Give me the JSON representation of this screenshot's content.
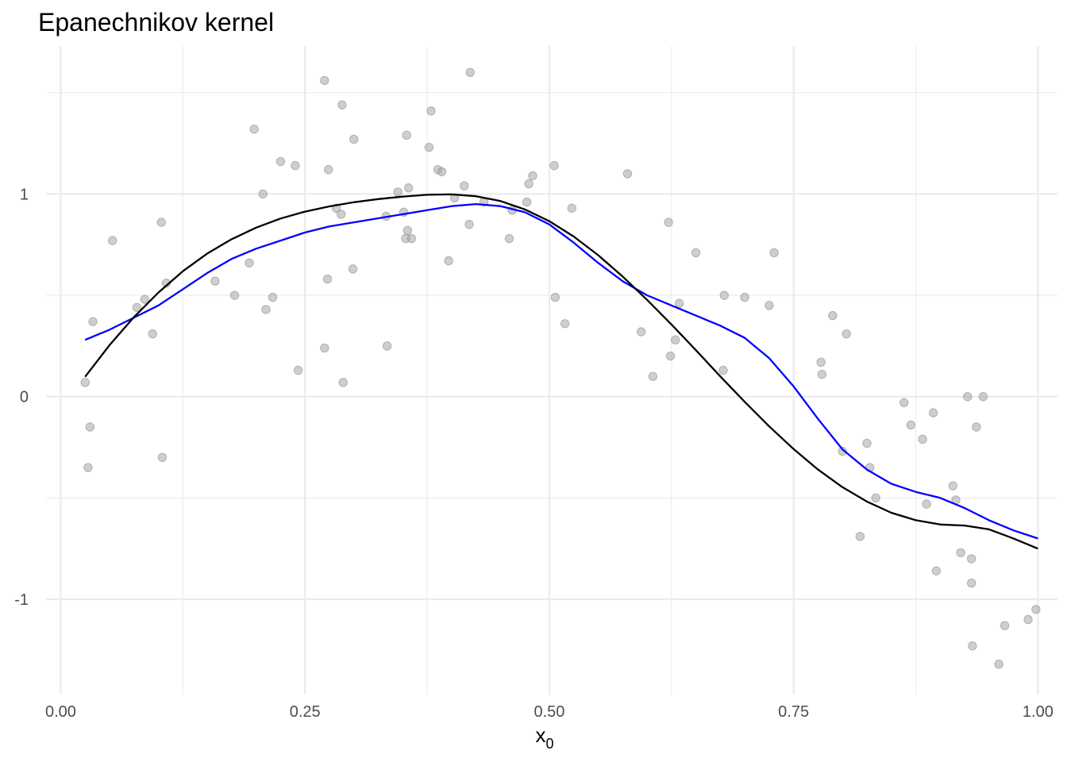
{
  "chart_data": {
    "type": "scatter",
    "title": "Epanechnikov kernel",
    "xlabel": "x",
    "xlabel_subscript": "0",
    "ylabel": "",
    "xlim": [
      -0.015,
      1.02
    ],
    "ylim": [
      -1.47,
      1.73
    ],
    "x_ticks": [
      0.0,
      0.25,
      0.5,
      0.75,
      1.0
    ],
    "x_tick_labels": [
      "0.00",
      "0.25",
      "0.50",
      "0.75",
      "1.00"
    ],
    "x_minor_ticks": [
      0.125,
      0.375,
      0.625,
      0.875
    ],
    "y_ticks": [
      -1,
      0,
      1
    ],
    "y_tick_labels": [
      "-1",
      "0",
      "1"
    ],
    "y_minor_ticks": [
      -0.5,
      0.5,
      1.5
    ],
    "grid": true,
    "colors": {
      "points": "#a6a6a6",
      "true_curve": "#000000",
      "kernel_fit": "#0000ff",
      "grid": "#ebebeb",
      "tick_text": "#4d4d4d"
    },
    "points": [
      [
        0.025,
        0.07
      ],
      [
        0.028,
        -0.35
      ],
      [
        0.03,
        -0.15
      ],
      [
        0.033,
        0.37
      ],
      [
        0.053,
        0.77
      ],
      [
        0.078,
        0.44
      ],
      [
        0.086,
        0.48
      ],
      [
        0.094,
        0.31
      ],
      [
        0.103,
        0.86
      ],
      [
        0.104,
        -0.3
      ],
      [
        0.108,
        0.56
      ],
      [
        0.158,
        0.57
      ],
      [
        0.178,
        0.5
      ],
      [
        0.193,
        0.66
      ],
      [
        0.198,
        1.32
      ],
      [
        0.207,
        1.0
      ],
      [
        0.21,
        0.43
      ],
      [
        0.217,
        0.49
      ],
      [
        0.225,
        1.16
      ],
      [
        0.24,
        1.14
      ],
      [
        0.243,
        0.13
      ],
      [
        0.27,
        0.24
      ],
      [
        0.27,
        1.56
      ],
      [
        0.273,
        0.58
      ],
      [
        0.274,
        1.12
      ],
      [
        0.282,
        0.93
      ],
      [
        0.287,
        0.9
      ],
      [
        0.288,
        1.44
      ],
      [
        0.289,
        0.07
      ],
      [
        0.299,
        0.63
      ],
      [
        0.3,
        1.27
      ],
      [
        0.333,
        0.89
      ],
      [
        0.334,
        0.25
      ],
      [
        0.345,
        1.01
      ],
      [
        0.351,
        0.91
      ],
      [
        0.353,
        0.78
      ],
      [
        0.354,
        1.29
      ],
      [
        0.355,
        0.82
      ],
      [
        0.356,
        1.03
      ],
      [
        0.359,
        0.78
      ],
      [
        0.377,
        1.23
      ],
      [
        0.379,
        1.41
      ],
      [
        0.386,
        1.12
      ],
      [
        0.39,
        1.11
      ],
      [
        0.397,
        0.67
      ],
      [
        0.403,
        0.98
      ],
      [
        0.413,
        1.04
      ],
      [
        0.418,
        0.85
      ],
      [
        0.419,
        1.6
      ],
      [
        0.433,
        0.96
      ],
      [
        0.459,
        0.78
      ],
      [
        0.462,
        0.92
      ],
      [
        0.477,
        0.96
      ],
      [
        0.479,
        1.05
      ],
      [
        0.483,
        1.09
      ],
      [
        0.505,
        1.14
      ],
      [
        0.506,
        0.49
      ],
      [
        0.516,
        0.36
      ],
      [
        0.523,
        0.93
      ],
      [
        0.58,
        1.1
      ],
      [
        0.594,
        0.32
      ],
      [
        0.606,
        0.1
      ],
      [
        0.622,
        0.86
      ],
      [
        0.624,
        0.2
      ],
      [
        0.629,
        0.28
      ],
      [
        0.633,
        0.46
      ],
      [
        0.65,
        0.71
      ],
      [
        0.678,
        0.13
      ],
      [
        0.679,
        0.5
      ],
      [
        0.7,
        0.49
      ],
      [
        0.725,
        0.45
      ],
      [
        0.73,
        0.71
      ],
      [
        0.778,
        0.17
      ],
      [
        0.779,
        0.11
      ],
      [
        0.79,
        0.4
      ],
      [
        0.8,
        -0.27
      ],
      [
        0.804,
        0.31
      ],
      [
        0.818,
        -0.69
      ],
      [
        0.825,
        -0.23
      ],
      [
        0.828,
        -0.35
      ],
      [
        0.834,
        -0.5
      ],
      [
        0.863,
        -0.03
      ],
      [
        0.87,
        -0.14
      ],
      [
        0.882,
        -0.21
      ],
      [
        0.886,
        -0.53
      ],
      [
        0.893,
        -0.08
      ],
      [
        0.896,
        -0.86
      ],
      [
        0.913,
        -0.44
      ],
      [
        0.916,
        -0.51
      ],
      [
        0.921,
        -0.77
      ],
      [
        0.928,
        0.0
      ],
      [
        0.932,
        -0.8
      ],
      [
        0.932,
        -0.92
      ],
      [
        0.933,
        -1.23
      ],
      [
        0.937,
        -0.15
      ],
      [
        0.944,
        0.0
      ],
      [
        0.96,
        -1.32
      ],
      [
        0.966,
        -1.13
      ],
      [
        0.99,
        -1.1
      ],
      [
        0.998,
        -1.05
      ]
    ],
    "series": [
      {
        "type": "line",
        "color": "#000000",
        "points": [
          [
            0.025,
            0.098
          ],
          [
            0.05,
            0.254
          ],
          [
            0.075,
            0.393
          ],
          [
            0.1,
            0.514
          ],
          [
            0.125,
            0.619
          ],
          [
            0.15,
            0.706
          ],
          [
            0.175,
            0.777
          ],
          [
            0.2,
            0.834
          ],
          [
            0.225,
            0.879
          ],
          [
            0.25,
            0.913
          ],
          [
            0.275,
            0.939
          ],
          [
            0.3,
            0.959
          ],
          [
            0.325,
            0.975
          ],
          [
            0.35,
            0.987
          ],
          [
            0.375,
            0.996
          ],
          [
            0.4,
            0.998
          ],
          [
            0.425,
            0.989
          ],
          [
            0.45,
            0.965
          ],
          [
            0.475,
            0.924
          ],
          [
            0.5,
            0.866
          ],
          [
            0.525,
            0.79
          ],
          [
            0.55,
            0.698
          ],
          [
            0.575,
            0.593
          ],
          [
            0.6,
            0.478
          ],
          [
            0.625,
            0.356
          ],
          [
            0.65,
            0.229
          ],
          [
            0.675,
            0.1
          ],
          [
            0.7,
            -0.026
          ],
          [
            0.725,
            -0.147
          ],
          [
            0.75,
            -0.259
          ],
          [
            0.775,
            -0.36
          ],
          [
            0.8,
            -0.447
          ],
          [
            0.825,
            -0.518
          ],
          [
            0.85,
            -0.573
          ],
          [
            0.875,
            -0.61
          ],
          [
            0.9,
            -0.631
          ],
          [
            0.925,
            -0.636
          ],
          [
            0.95,
            -0.655
          ],
          [
            0.975,
            -0.7
          ],
          [
            1.0,
            -0.75
          ]
        ]
      },
      {
        "type": "line",
        "color": "#0000ff",
        "points": [
          [
            0.025,
            0.28
          ],
          [
            0.05,
            0.33
          ],
          [
            0.075,
            0.39
          ],
          [
            0.1,
            0.45
          ],
          [
            0.125,
            0.53
          ],
          [
            0.15,
            0.61
          ],
          [
            0.175,
            0.68
          ],
          [
            0.2,
            0.73
          ],
          [
            0.225,
            0.77
          ],
          [
            0.25,
            0.81
          ],
          [
            0.275,
            0.84
          ],
          [
            0.3,
            0.86
          ],
          [
            0.325,
            0.88
          ],
          [
            0.35,
            0.9
          ],
          [
            0.375,
            0.92
          ],
          [
            0.4,
            0.94
          ],
          [
            0.425,
            0.95
          ],
          [
            0.45,
            0.94
          ],
          [
            0.475,
            0.91
          ],
          [
            0.5,
            0.85
          ],
          [
            0.525,
            0.76
          ],
          [
            0.55,
            0.66
          ],
          [
            0.575,
            0.57
          ],
          [
            0.6,
            0.5
          ],
          [
            0.625,
            0.45
          ],
          [
            0.65,
            0.4
          ],
          [
            0.675,
            0.35
          ],
          [
            0.7,
            0.29
          ],
          [
            0.725,
            0.19
          ],
          [
            0.75,
            0.05
          ],
          [
            0.775,
            -0.11
          ],
          [
            0.8,
            -0.26
          ],
          [
            0.825,
            -0.36
          ],
          [
            0.85,
            -0.43
          ],
          [
            0.875,
            -0.47
          ],
          [
            0.9,
            -0.5
          ],
          [
            0.925,
            -0.55
          ],
          [
            0.95,
            -0.61
          ],
          [
            0.975,
            -0.66
          ],
          [
            1.0,
            -0.7
          ]
        ]
      }
    ]
  }
}
